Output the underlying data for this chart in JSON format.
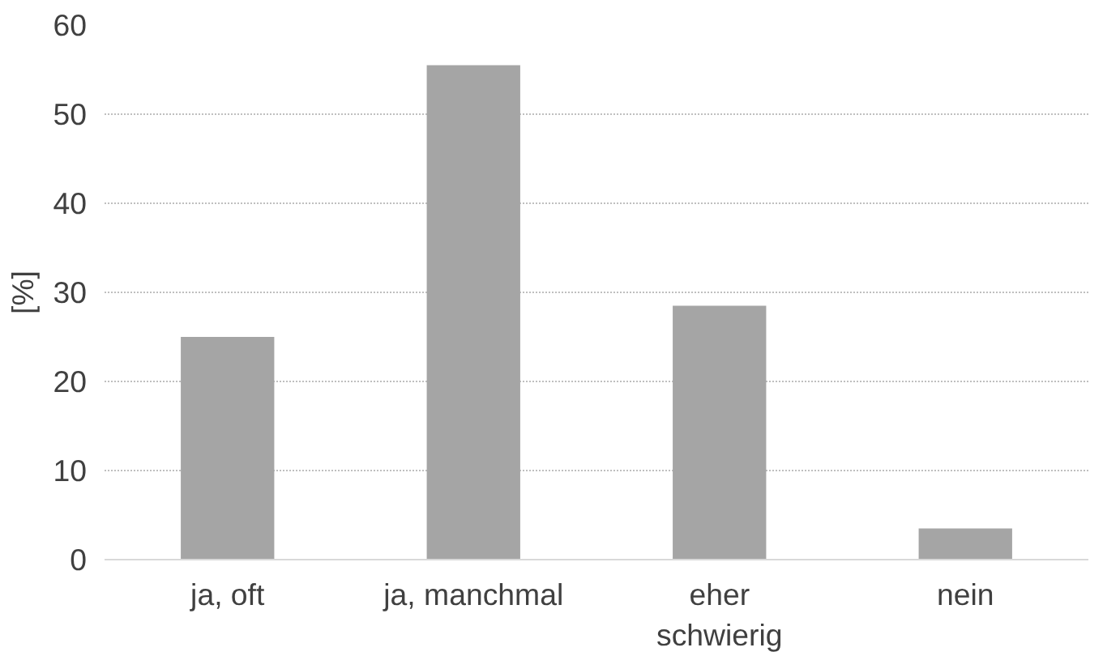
{
  "chart_data": {
    "type": "bar",
    "ylabel": "[%]",
    "categories": [
      "ja, oft",
      "ja, manchmal",
      "eher\nschwierig",
      "nein"
    ],
    "values": [
      25,
      55.5,
      28.5,
      3.5
    ],
    "color": "#a5a5a5",
    "ylim": [
      0,
      60
    ],
    "yticks": [
      0,
      10,
      20,
      30,
      40,
      50,
      60
    ],
    "grid": "y"
  }
}
